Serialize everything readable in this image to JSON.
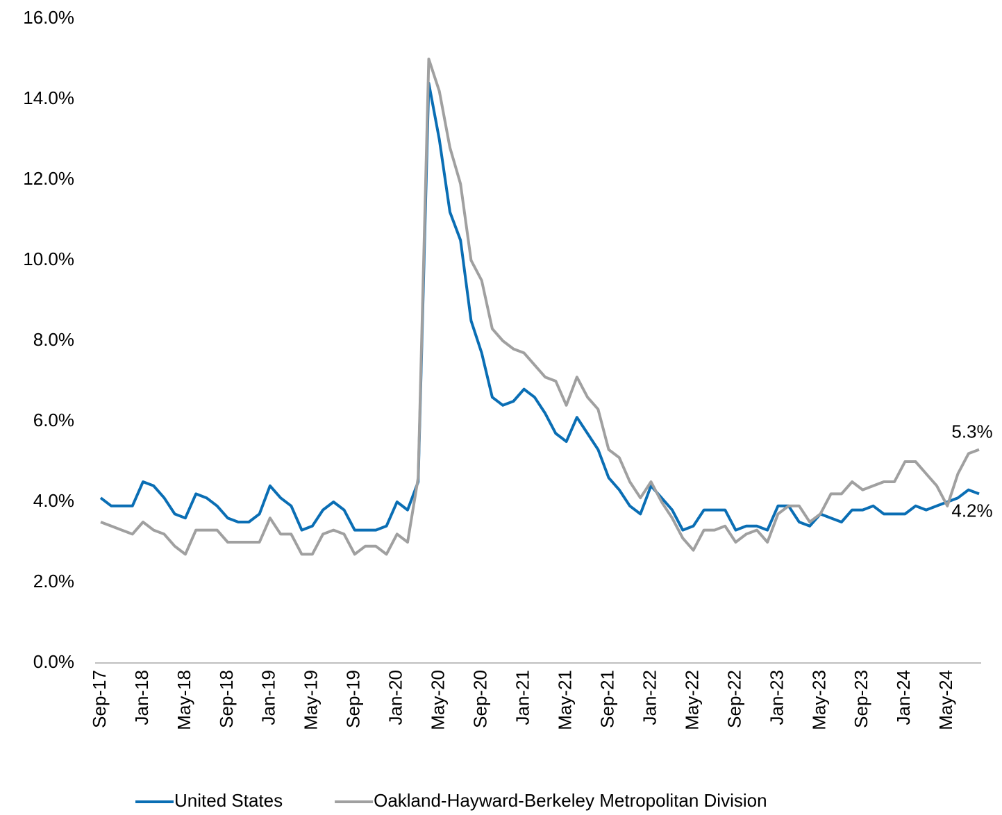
{
  "chart_data": {
    "type": "line",
    "categories": [
      "Sep-17",
      null,
      null,
      null,
      "Jan-18",
      null,
      null,
      null,
      "May-18",
      null,
      null,
      null,
      "Sep-18",
      null,
      null,
      null,
      "Jan-19",
      null,
      null,
      null,
      "May-19",
      null,
      null,
      null,
      "Sep-19",
      null,
      null,
      null,
      "Jan-20",
      null,
      null,
      null,
      "May-20",
      null,
      null,
      null,
      "Sep-20",
      null,
      null,
      null,
      "Jan-21",
      null,
      null,
      null,
      "May-21",
      null,
      null,
      null,
      "Sep-21",
      null,
      null,
      null,
      "Jan-22",
      null,
      null,
      null,
      "May-22",
      null,
      null,
      null,
      "Sep-22",
      null,
      null,
      null,
      "Jan-23",
      null,
      null,
      null,
      "May-23",
      null,
      null,
      null,
      "Sep-23",
      null,
      null,
      null,
      "Jan-24",
      null,
      null,
      null,
      "May-24",
      null,
      null,
      null
    ],
    "series": [
      {
        "name": "United States",
        "color": "#0a6eb4",
        "values": [
          4.1,
          3.9,
          3.9,
          3.9,
          4.5,
          4.4,
          4.1,
          3.7,
          3.6,
          4.2,
          4.1,
          3.9,
          3.6,
          3.5,
          3.5,
          3.7,
          4.4,
          4.1,
          3.9,
          3.3,
          3.4,
          3.8,
          4.0,
          3.8,
          3.3,
          3.3,
          3.3,
          3.4,
          4.0,
          3.8,
          4.5,
          14.4,
          13.0,
          11.2,
          10.5,
          8.5,
          7.7,
          6.6,
          6.4,
          6.5,
          6.8,
          6.6,
          6.2,
          5.7,
          5.5,
          6.1,
          5.7,
          5.3,
          4.6,
          4.3,
          3.9,
          3.7,
          4.4,
          4.1,
          3.8,
          3.3,
          3.4,
          3.8,
          3.8,
          3.8,
          3.3,
          3.4,
          3.4,
          3.3,
          3.9,
          3.9,
          3.5,
          3.4,
          3.7,
          3.6,
          3.5,
          3.8,
          3.8,
          3.9,
          3.7,
          3.7,
          3.7,
          3.9,
          3.8,
          3.9,
          4.0,
          4.1,
          4.3,
          4.2
        ],
        "value_labels": [
          null,
          null,
          null,
          null,
          null,
          null,
          null,
          null,
          null,
          null,
          null,
          null,
          null,
          null,
          null,
          null,
          null,
          null,
          null,
          null,
          null,
          null,
          null,
          null,
          null,
          null,
          null,
          null,
          null,
          null,
          null,
          null,
          null,
          null,
          null,
          null,
          null,
          null,
          null,
          null,
          null,
          null,
          null,
          null,
          null,
          null,
          null,
          null,
          null,
          null,
          null,
          null,
          null,
          null,
          null,
          null,
          null,
          null,
          null,
          null,
          null,
          null,
          null,
          null,
          null,
          null,
          null,
          null,
          null,
          null,
          null,
          null,
          null,
          null,
          null,
          null,
          null,
          null,
          null,
          null,
          null,
          null,
          null,
          "4.2%"
        ]
      },
      {
        "name": "Oakland-Hayward-Berkeley Metropolitan Division",
        "color": "#a0a0a0",
        "values": [
          3.5,
          3.4,
          3.3,
          3.2,
          3.5,
          3.3,
          3.2,
          2.9,
          2.7,
          3.3,
          3.3,
          3.3,
          3.0,
          3.0,
          3.0,
          3.0,
          3.6,
          3.2,
          3.2,
          2.7,
          2.7,
          3.2,
          3.3,
          3.2,
          2.7,
          2.9,
          2.9,
          2.7,
          3.2,
          3.0,
          4.6,
          15.0,
          14.2,
          12.8,
          11.9,
          10.0,
          9.5,
          8.3,
          8.0,
          7.8,
          7.7,
          7.4,
          7.1,
          7.0,
          6.4,
          7.1,
          6.6,
          6.3,
          5.3,
          5.1,
          4.5,
          4.1,
          4.5,
          4.0,
          3.6,
          3.1,
          2.8,
          3.3,
          3.3,
          3.4,
          3.0,
          3.2,
          3.3,
          3.0,
          3.7,
          3.9,
          3.9,
          3.5,
          3.7,
          4.2,
          4.2,
          4.5,
          4.3,
          4.4,
          4.5,
          4.5,
          5.0,
          5.0,
          4.7,
          4.4,
          3.9,
          4.7,
          5.2,
          5.3
        ],
        "value_labels": [
          null,
          null,
          null,
          null,
          null,
          null,
          null,
          null,
          null,
          null,
          null,
          null,
          null,
          null,
          null,
          null,
          null,
          null,
          null,
          null,
          null,
          null,
          null,
          null,
          null,
          null,
          null,
          null,
          null,
          null,
          null,
          null,
          null,
          null,
          null,
          null,
          null,
          null,
          null,
          null,
          null,
          null,
          null,
          null,
          null,
          null,
          null,
          null,
          null,
          null,
          null,
          null,
          null,
          null,
          null,
          null,
          null,
          null,
          null,
          null,
          null,
          null,
          null,
          null,
          null,
          null,
          null,
          null,
          null,
          null,
          null,
          null,
          null,
          null,
          null,
          null,
          null,
          null,
          null,
          null,
          null,
          null,
          null,
          "5.3%"
        ]
      }
    ],
    "ylim": [
      0,
      16
    ],
    "yticks": [
      {
        "value": 0,
        "label": "0.0%"
      },
      {
        "value": 2,
        "label": "2.0%"
      },
      {
        "value": 4,
        "label": "4.0%"
      },
      {
        "value": 6,
        "label": "6.0%"
      },
      {
        "value": 8,
        "label": "8.0%"
      },
      {
        "value": 10,
        "label": "10.0%"
      },
      {
        "value": 12,
        "label": "12.0%"
      },
      {
        "value": 14,
        "label": "14.0%"
      },
      {
        "value": 16,
        "label": "16.0%"
      }
    ],
    "grid": false,
    "legend": "bottom"
  }
}
